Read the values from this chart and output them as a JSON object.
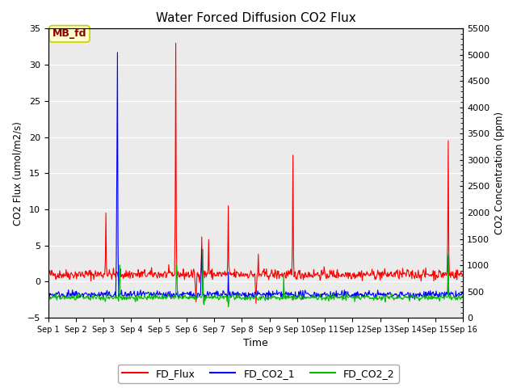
{
  "title": "Water Forced Diffusion CO2 Flux",
  "xlabel": "Time",
  "ylabel_left": "CO2 Flux (umol/m2/s)",
  "ylabel_right": "CO2 Concentration (ppm)",
  "ylim_left": [
    -5,
    35
  ],
  "ylim_right": [
    0,
    5500
  ],
  "yticks_left": [
    -5,
    0,
    5,
    10,
    15,
    20,
    25,
    30,
    35
  ],
  "yticks_right": [
    0,
    500,
    1000,
    1500,
    2000,
    2500,
    3000,
    3500,
    4000,
    4500,
    5000,
    5500
  ],
  "xtick_labels": [
    "Sep 1",
    "Sep 2",
    "Sep 3",
    "Sep 4",
    "Sep 5",
    "Sep 6",
    "Sep 7",
    "Sep 8",
    "Sep 9",
    "Sep 10",
    "Sep 11",
    "Sep 12",
    "Sep 13",
    "Sep 14",
    "Sep 15",
    "Sep 16"
  ],
  "legend_entries": [
    "FD_Flux",
    "FD_CO2_1",
    "FD_CO2_2"
  ],
  "legend_colors": [
    "#ff0000",
    "#0000ff",
    "#00bb00"
  ],
  "annotation_text": "MB_fd",
  "annotation_bbox_facecolor": "#ffffcc",
  "annotation_bbox_edgecolor": "#cccc00",
  "annotation_text_color": "#880000",
  "bg_color": "#ebebeb",
  "grid_color": "#ffffff",
  "n_days": 15,
  "n_points_per_day": 48,
  "figsize": [
    6.4,
    4.8
  ],
  "dpi": 100
}
